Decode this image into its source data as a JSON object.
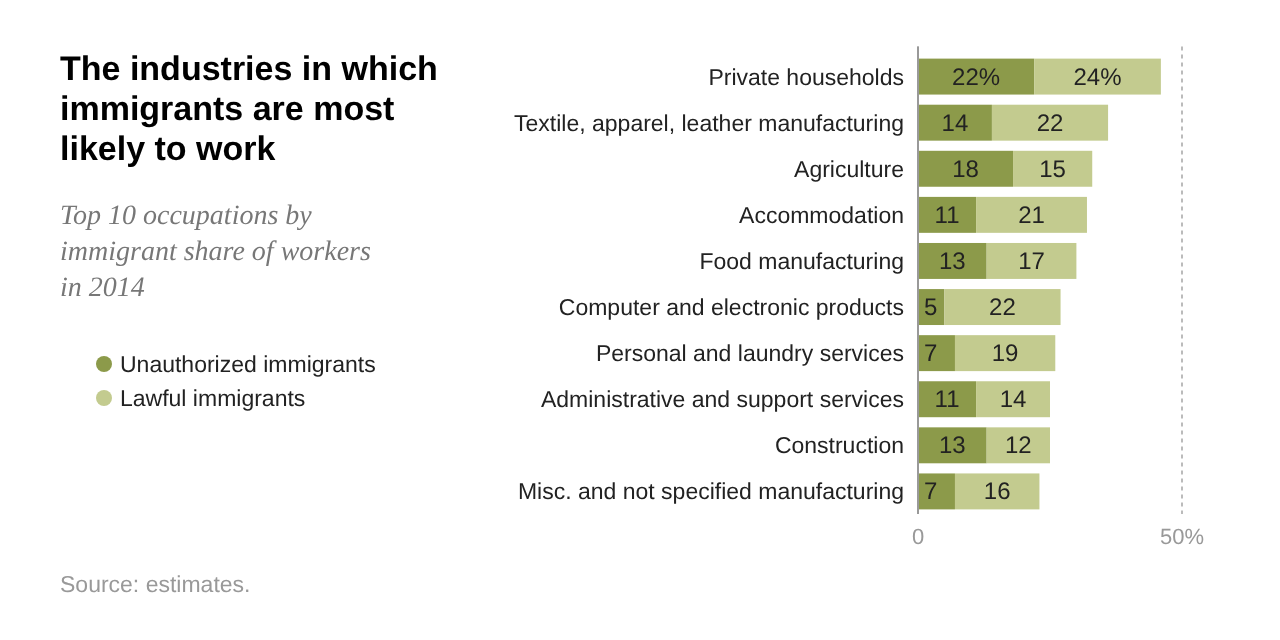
{
  "chart_data": {
    "type": "bar",
    "orientation": "horizontal",
    "stacked": true,
    "title": "The industries in which immigrants are most likely to work",
    "subtitle": "Top 10 occupations by immigrant share of workers in 2014",
    "categories": [
      "Private households",
      "Textile, apparel, leather manufacturing",
      "Agriculture",
      "Accommodation",
      "Food manufacturing",
      "Computer and electronic products",
      "Personal and laundry services",
      "Administrative and support services",
      "Construction",
      "Misc. and not specified manufacturing"
    ],
    "series": [
      {
        "name": "Unauthorized immigrants",
        "color": "#8c9a4a",
        "values": [
          22,
          14,
          18,
          11,
          13,
          5,
          7,
          11,
          13,
          7
        ],
        "value_labels": [
          "22%",
          "14",
          "18",
          "11",
          "13",
          "5",
          "7",
          "11",
          "13",
          "7"
        ]
      },
      {
        "name": "Lawful immigrants",
        "color": "#c3cb8f",
        "values": [
          24,
          22,
          15,
          21,
          17,
          22,
          19,
          14,
          12,
          16
        ],
        "value_labels": [
          "24%",
          "22",
          "15",
          "21",
          "17",
          "22",
          "19",
          "14",
          "12",
          "16"
        ]
      }
    ],
    "xlim": [
      0,
      50
    ],
    "xticks": [
      0,
      {
        "value": 50,
        "label": "50%"
      }
    ],
    "grid": "x",
    "legend": "left",
    "annotations": [
      "Source: estimates."
    ]
  }
}
